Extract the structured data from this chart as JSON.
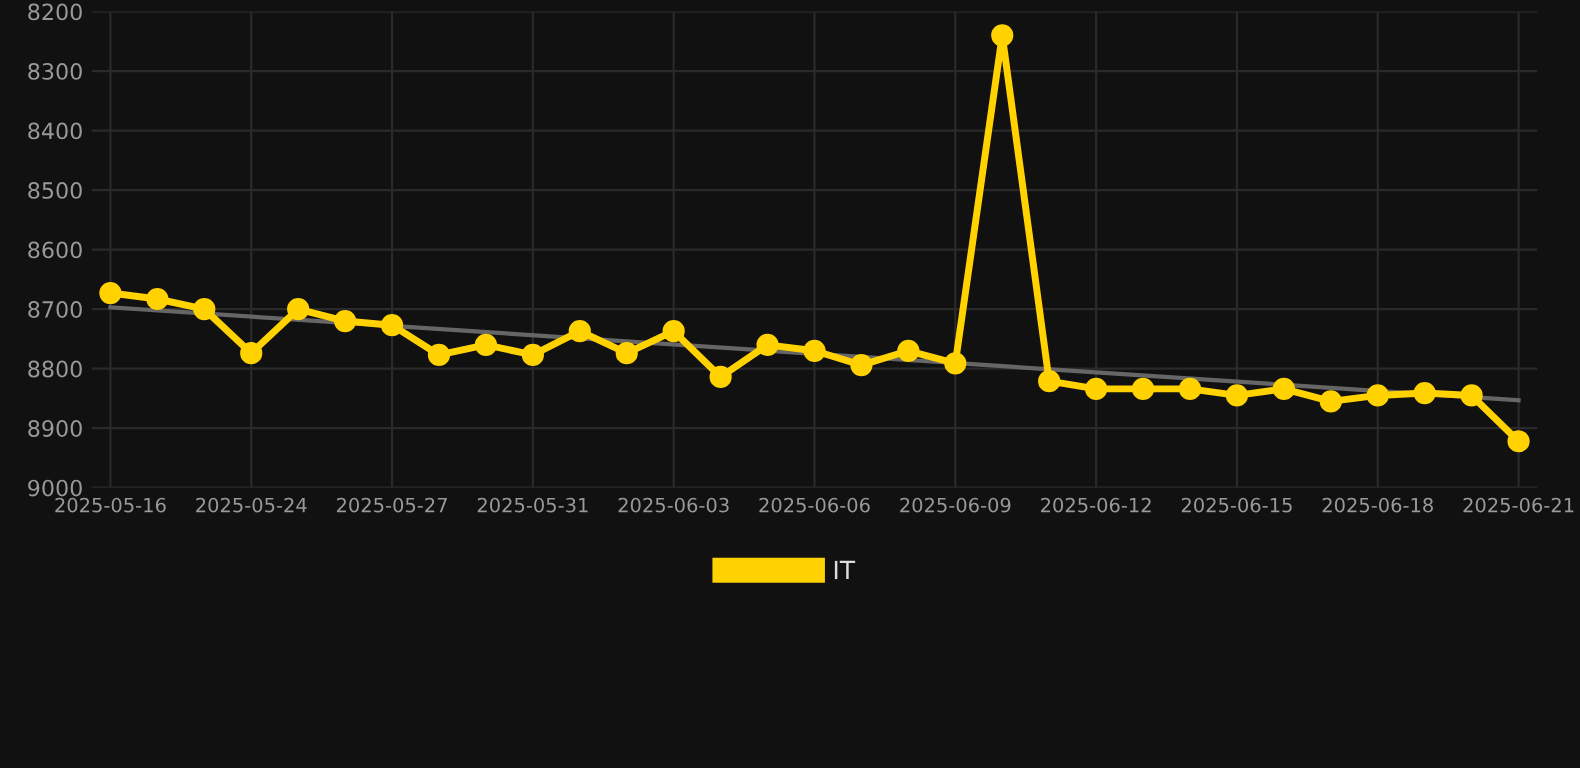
{
  "chart_data": {
    "type": "line",
    "categories": [
      "2025-05-16",
      null,
      null,
      "2025-05-24",
      null,
      null,
      "2025-05-27",
      null,
      null,
      "2025-05-31",
      null,
      null,
      "2025-06-03",
      null,
      null,
      "2025-06-06",
      null,
      null,
      "2025-06-09",
      null,
      null,
      "2025-06-12",
      null,
      null,
      "2025-06-15",
      null,
      null,
      "2025-06-18",
      null,
      null,
      "2025-06-21"
    ],
    "series": [
      {
        "name": "IT",
        "color": "#ffd200",
        "marker": "circle",
        "values": [
          8673,
          8683,
          8700,
          8774,
          8700,
          8720,
          8727,
          8777,
          8760,
          8777,
          8737,
          8774,
          8737,
          8814,
          8760,
          8770,
          8794,
          8770,
          8791,
          8240,
          8821,
          8834,
          8834,
          8834,
          8845,
          8834,
          8855,
          8845,
          8841,
          8845,
          8922
        ]
      },
      {
        "type": "line",
        "color": "#666666",
        "marker": "none",
        "values": [
          8697,
          null,
          null,
          null,
          null,
          null,
          null,
          null,
          null,
          null,
          null,
          null,
          null,
          null,
          null,
          null,
          null,
          null,
          null,
          null,
          null,
          null,
          null,
          null,
          null,
          null,
          null,
          null,
          null,
          null,
          8853
        ]
      }
    ],
    "ylim": [
      9000,
      8200
    ],
    "yticks": [
      8200,
      8300,
      8400,
      8500,
      8600,
      8700,
      8800,
      8900,
      9000
    ],
    "grid": true,
    "legend": "bottom"
  }
}
